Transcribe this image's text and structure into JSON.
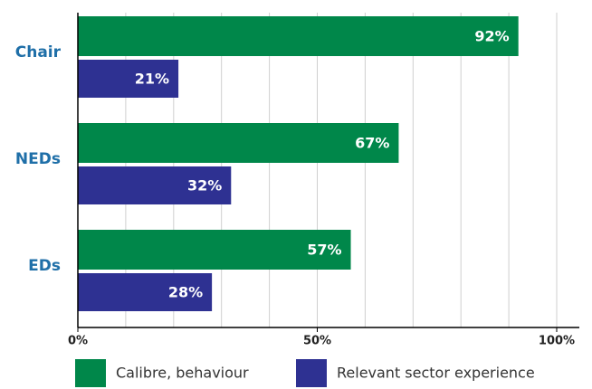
{
  "chart_data": {
    "type": "bar",
    "orientation": "horizontal",
    "categories": [
      "Chair",
      "NEDs",
      "EDs"
    ],
    "series": [
      {
        "name": "Calibre, behaviour",
        "color": "#00874a",
        "values": [
          92,
          67,
          57
        ],
        "value_labels": [
          "92%",
          "67%",
          "57%"
        ]
      },
      {
        "name": "Relevant sector experience",
        "color": "#2e3192",
        "values": [
          21,
          32,
          28
        ],
        "value_labels": [
          "21%",
          "32%",
          "28%"
        ]
      }
    ],
    "xlim": [
      0,
      100
    ],
    "xticks": [
      {
        "value": 0,
        "label": "0%"
      },
      {
        "value": 50,
        "label": "50%"
      },
      {
        "value": 100,
        "label": "100%"
      }
    ],
    "xgrid": [
      0,
      10,
      20,
      30,
      40,
      50,
      60,
      70,
      80,
      90,
      100
    ],
    "grid": true,
    "legend": "bottom"
  }
}
